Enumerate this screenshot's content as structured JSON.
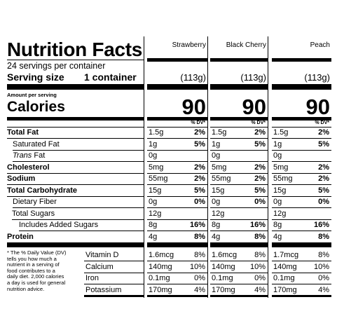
{
  "header": {
    "title": "Nutrition Facts",
    "servings_per_container": "24 servings per container",
    "serving_size_label": "Serving size",
    "serving_size_value": "1 container",
    "amount_per_serving": "Amount per serving",
    "calories_label": "Calories",
    "dv_header": "% DV*"
  },
  "flavors": [
    {
      "name": "Strawberry",
      "serving_grams": "(113g)",
      "calories": "90",
      "nutrients": [
        {
          "amount": "1.5g",
          "dv": "2%"
        },
        {
          "amount": "1g",
          "dv": "5%"
        },
        {
          "amount": "0g",
          "dv": ""
        },
        {
          "amount": "5mg",
          "dv": "2%"
        },
        {
          "amount": "55mg",
          "dv": "2%"
        },
        {
          "amount": "15g",
          "dv": "5%"
        },
        {
          "amount": "0g",
          "dv": "0%"
        },
        {
          "amount": "12g",
          "dv": ""
        },
        {
          "amount": "8g",
          "dv": "16%"
        },
        {
          "amount": "4g",
          "dv": "8%"
        }
      ],
      "vitamins": [
        {
          "amount": "1.6mcg",
          "dv": "8%"
        },
        {
          "amount": "140mg",
          "dv": "10%"
        },
        {
          "amount": "0.1mg",
          "dv": "0%"
        },
        {
          "amount": "170mg",
          "dv": "4%"
        }
      ]
    },
    {
      "name": "Black Cherry",
      "serving_grams": "(113g)",
      "calories": "90",
      "nutrients": [
        {
          "amount": "1.5g",
          "dv": "2%"
        },
        {
          "amount": "1g",
          "dv": "5%"
        },
        {
          "amount": "0g",
          "dv": ""
        },
        {
          "amount": "5mg",
          "dv": "2%"
        },
        {
          "amount": "55mg",
          "dv": "2%"
        },
        {
          "amount": "15g",
          "dv": "5%"
        },
        {
          "amount": "0g",
          "dv": "0%"
        },
        {
          "amount": "12g",
          "dv": ""
        },
        {
          "amount": "8g",
          "dv": "16%"
        },
        {
          "amount": "4g",
          "dv": "8%"
        }
      ],
      "vitamins": [
        {
          "amount": "1.6mcg",
          "dv": "8%"
        },
        {
          "amount": "140mg",
          "dv": "10%"
        },
        {
          "amount": "0.1mg",
          "dv": "0%"
        },
        {
          "amount": "170mg",
          "dv": "4%"
        }
      ]
    },
    {
      "name": "Peach",
      "serving_grams": "(113g)",
      "calories": "90",
      "nutrients": [
        {
          "amount": "1.5g",
          "dv": "2%"
        },
        {
          "amount": "1g",
          "dv": "5%"
        },
        {
          "amount": "0g",
          "dv": ""
        },
        {
          "amount": "5mg",
          "dv": "2%"
        },
        {
          "amount": "55mg",
          "dv": "2%"
        },
        {
          "amount": "15g",
          "dv": "5%"
        },
        {
          "amount": "0g",
          "dv": "0%"
        },
        {
          "amount": "12g",
          "dv": ""
        },
        {
          "amount": "8g",
          "dv": "16%"
        },
        {
          "amount": "4g",
          "dv": "8%"
        }
      ],
      "vitamins": [
        {
          "amount": "1.7mcg",
          "dv": "8%"
        },
        {
          "amount": "140mg",
          "dv": "10%"
        },
        {
          "amount": "0.1mg",
          "dv": "0%"
        },
        {
          "amount": "170mg",
          "dv": "4%"
        }
      ]
    }
  ],
  "nutrient_rows": [
    {
      "label": "Total Fat",
      "style": "bold"
    },
    {
      "label": "Saturated Fat",
      "style": "indent"
    },
    {
      "label": "Trans",
      "label_suffix": " Fat",
      "style": "italic-indent"
    },
    {
      "label": "Cholesterol",
      "style": "bold"
    },
    {
      "label": "Sodium",
      "style": "bold"
    },
    {
      "label": "Total Carbohydrate",
      "style": "bold"
    },
    {
      "label": "Dietary Fiber",
      "style": "indent"
    },
    {
      "label": "Total Sugars",
      "style": "indent"
    },
    {
      "label": "Includes Added Sugars",
      "style": "indent2"
    },
    {
      "label": "Protein",
      "style": "bold"
    }
  ],
  "vitamin_rows": [
    {
      "label": "Vitamin D"
    },
    {
      "label": "Calcium"
    },
    {
      "label": "Iron"
    },
    {
      "label": "Potassium"
    }
  ],
  "footnote": [
    "* The % Daily Value (DV)",
    "tells you how much a",
    "nutrient in a serving of",
    "food contributes to a",
    "daily diet. 2,000 calories",
    "a day is used for general",
    "nutrition advice."
  ]
}
